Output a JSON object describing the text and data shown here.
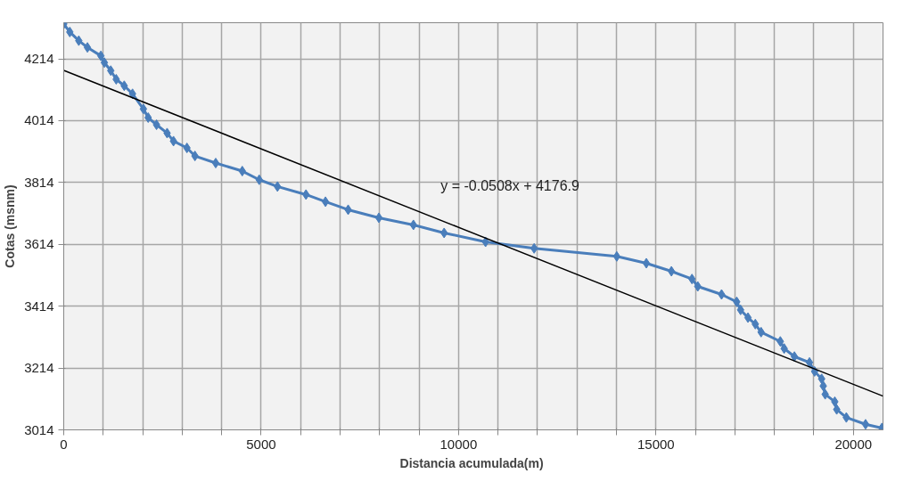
{
  "chart_data": {
    "type": "line",
    "xlabel": "Distancia  acumulada(m)",
    "ylabel": "Cotas (msnm)",
    "xlim": [
      0,
      20750
    ],
    "ylim": [
      3014,
      4331
    ],
    "xticks": [
      0,
      {
        "value": 1000,
        "label": null
      },
      {
        "value": 2000,
        "label": null
      },
      {
        "value": 3000,
        "label": null
      },
      {
        "value": 4000,
        "label": null
      },
      5000,
      {
        "value": 6000,
        "label": null
      },
      {
        "value": 7000,
        "label": null
      },
      {
        "value": 8000,
        "label": null
      },
      {
        "value": 9000,
        "label": null
      },
      10000,
      {
        "value": 11000,
        "label": null
      },
      {
        "value": 12000,
        "label": null
      },
      {
        "value": 13000,
        "label": null
      },
      {
        "value": 14000,
        "label": null
      },
      15000,
      {
        "value": 16000,
        "label": null
      },
      {
        "value": 17000,
        "label": null
      },
      {
        "value": 18000,
        "label": null
      },
      {
        "value": 19000,
        "label": null
      },
      20000
    ],
    "yticks": [
      3014,
      3214,
      3414,
      3614,
      3814,
      4014,
      4214
    ],
    "grid": true,
    "marker": "diamond",
    "line_style": "solid",
    "series": [
      {
        "color": "#4a7ebb",
        "x": [
          0,
          154,
          381,
          600,
          940,
          1029,
          1191,
          1329,
          1532,
          1742,
          2018,
          2139,
          2350,
          2618,
          2780,
          3120,
          3323,
          3849,
          4522,
          4951,
          5413,
          6135,
          6629,
          7204,
          7982,
          8857,
          9634,
          10684,
          11914,
          14007,
          14756,
          15391,
          15912,
          16059,
          16661,
          17045,
          17143,
          17330,
          17516,
          17662,
          18149,
          18247,
          18506,
          18888,
          19018,
          19196,
          19237,
          19286,
          19529,
          19578,
          19821,
          20308,
          20722
        ],
        "values": [
          4327,
          4301,
          4273,
          4251,
          4224,
          4202,
          4176,
          4148,
          4127,
          4101,
          4052,
          4024,
          4001,
          3974,
          3948,
          3926,
          3900,
          3877,
          3851,
          3823,
          3801,
          3775,
          3752,
          3726,
          3700,
          3677,
          3651,
          3622,
          3601,
          3575,
          3553,
          3527,
          3502,
          3478,
          3452,
          3428,
          3402,
          3377,
          3356,
          3330,
          3300,
          3277,
          3251,
          3232,
          3203,
          3179,
          3156,
          3129,
          3105,
          3080,
          3054,
          3032,
          3020
        ]
      },
      {
        "type": "line",
        "color": "#000000",
        "marker": "none",
        "x": [
          0,
          20750
        ],
        "values": [
          4177,
          3123
        ]
      }
    ],
    "annotations": [
      "y = -0.0508x + 4176.9"
    ]
  }
}
